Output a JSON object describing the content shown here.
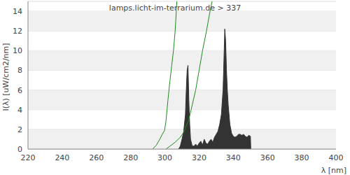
{
  "chart_data": {
    "type": "line",
    "title": "lamps.licht-im-terrarium.de > 337",
    "y_label": "I(λ)  [uW/cm2/nm]",
    "x_label": "λ [nm]",
    "xlim": [
      220,
      400
    ],
    "xticks": [
      220,
      240,
      260,
      280,
      300,
      320,
      340,
      360,
      380,
      400
    ],
    "ylim": [
      0,
      15
    ],
    "yticks": [
      0,
      2,
      4,
      6,
      8,
      10,
      12,
      14
    ],
    "grid": true,
    "series": [
      {
        "type": "area",
        "color": "#333333",
        "x": [
          308,
          309,
          310,
          311,
          312,
          312.5,
          313,
          313.5,
          314,
          314.5,
          315,
          316,
          317,
          318,
          319,
          320,
          321,
          322,
          323,
          324,
          325,
          326,
          327,
          328,
          329,
          330,
          331,
          332,
          333,
          334,
          334.5,
          335,
          335.5,
          336,
          336.5,
          337,
          338,
          339,
          340,
          341,
          342,
          343,
          344,
          345,
          346,
          347,
          348,
          349,
          350,
          350.2
        ],
        "values": [
          0,
          0.3,
          1,
          1.8,
          3.5,
          6,
          8,
          8.5,
          5,
          2.5,
          1,
          0.3,
          0.3,
          0.5,
          0.3,
          0.6,
          0.8,
          0.4,
          1,
          0.6,
          0.5,
          0.8,
          1,
          0.7,
          1.2,
          1.5,
          1.8,
          2.5,
          3.5,
          6,
          9,
          12.2,
          11,
          8,
          6,
          4.5,
          2.5,
          1.6,
          1.3,
          1.2,
          1.3,
          1.5,
          1.5,
          1.4,
          1.5,
          1.3,
          1.2,
          1.4,
          1.3,
          0
        ]
      },
      {
        "type": "line",
        "color": "#1f8a1f",
        "x": [
          292.8,
          295,
          297,
          298.5,
          299.8,
          300.6,
          301.8,
          303,
          304,
          305,
          306,
          307
        ],
        "values": [
          0,
          0.4,
          1,
          1.5,
          1.9,
          2.8,
          5,
          7,
          8.5,
          10,
          12,
          15
        ]
      },
      {
        "type": "line",
        "color": "#1f8a1f",
        "x": [
          300.6,
          303,
          306,
          309,
          311,
          314,
          316,
          318,
          320,
          322,
          324.3,
          326.4,
          327.6
        ],
        "values": [
          0,
          0.3,
          0.7,
          1.2,
          1.7,
          3,
          4.5,
          6,
          8,
          10,
          12,
          14,
          15
        ]
      }
    ]
  }
}
